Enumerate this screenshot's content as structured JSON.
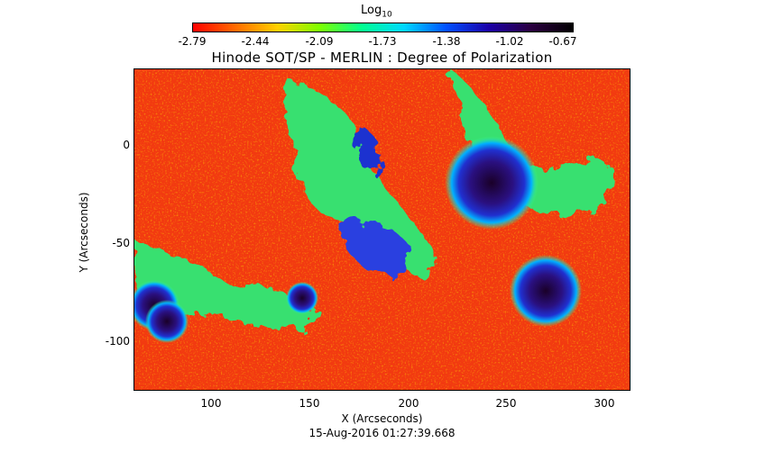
{
  "colorbar": {
    "title": "Log",
    "title_sub": "10",
    "gradient_colors": [
      "#ff0000",
      "#ff6a00",
      "#ffd000",
      "#7cff00",
      "#00ff90",
      "#00d8ff",
      "#0050ff",
      "#1a00a8",
      "#2a0040",
      "#000000"
    ],
    "ticks": [
      "-2.79",
      "-2.44",
      "-2.09",
      "-1.73",
      "-1.38",
      "-1.02",
      "-0.67"
    ]
  },
  "title": "Hinode SOT/SP - MERLIN : Degree of Polarization",
  "x_axis": {
    "label": "X (Arcseconds)",
    "ticks": [
      "100",
      "150",
      "200",
      "250",
      "300"
    ]
  },
  "y_axis": {
    "label": "Y (Arcseconds)",
    "ticks": [
      "0",
      "-50",
      "-100"
    ]
  },
  "timestamp": "15-Aug-2016 01:27:39.668"
}
